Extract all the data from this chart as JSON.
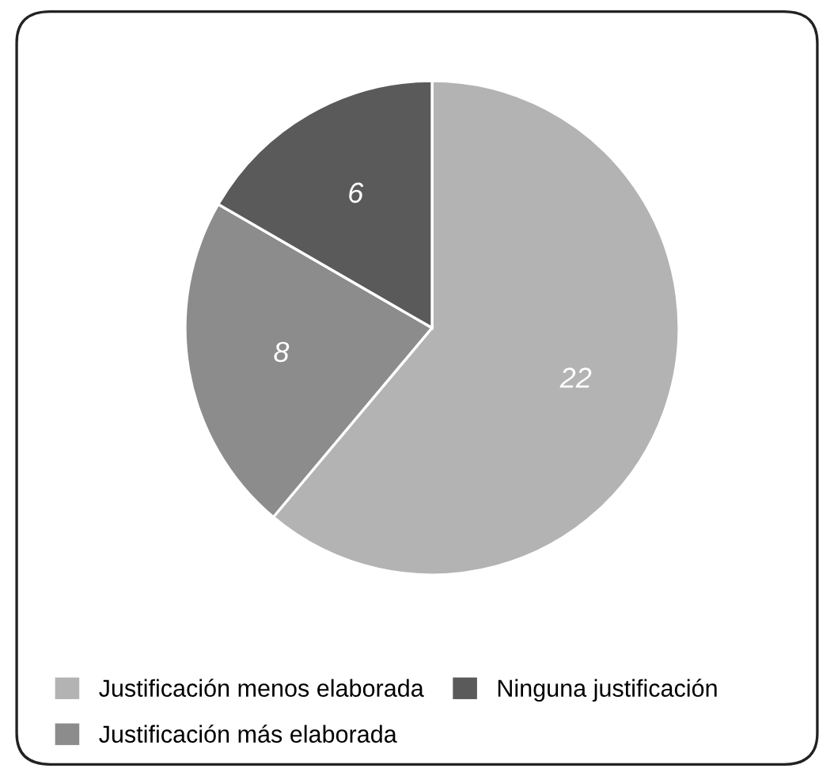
{
  "chart_data": {
    "type": "pie",
    "categories": [
      "Justificación menos elaborada",
      "Justificación más elaborada",
      "Ninguna justificación"
    ],
    "values": [
      22,
      8,
      6
    ],
    "colors": [
      "#b3b3b3",
      "#8c8c8c",
      "#5a5a5a"
    ],
    "data_labels": true,
    "legend": "bottom"
  }
}
